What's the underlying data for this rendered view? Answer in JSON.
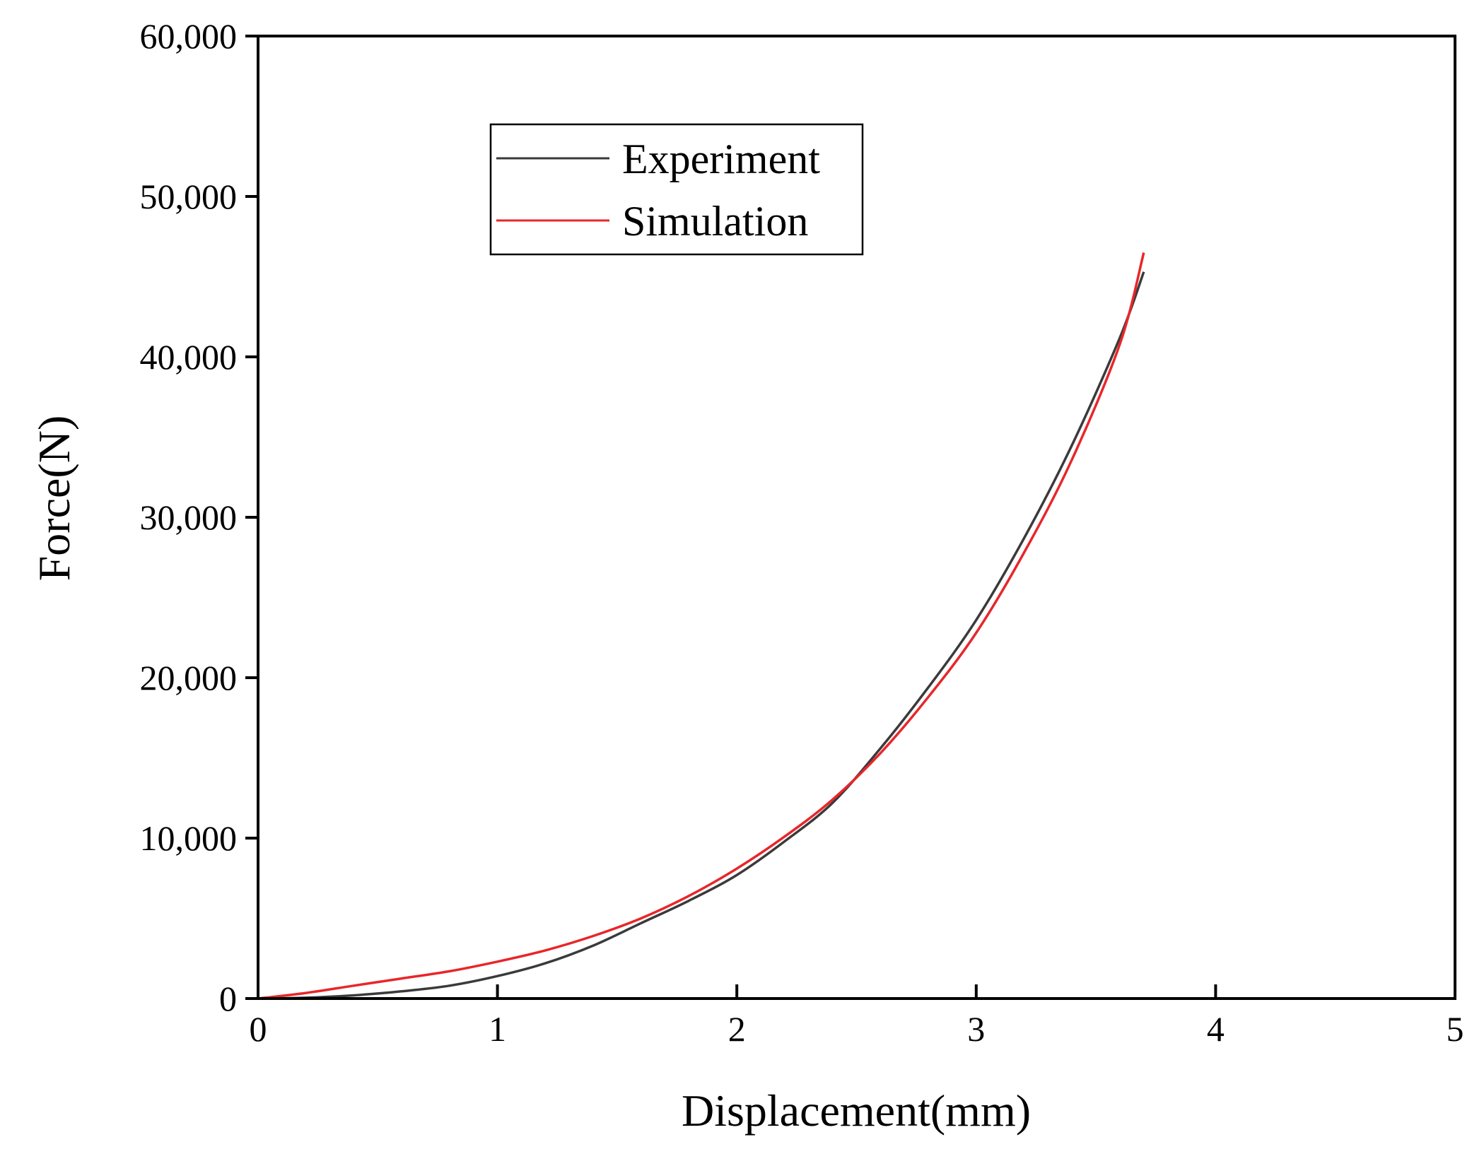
{
  "chart_data": {
    "type": "line",
    "title": "",
    "xlabel": "Displacement(mm)",
    "ylabel": "Force(N)",
    "xlim": [
      0,
      5
    ],
    "ylim": [
      0,
      60000
    ],
    "x_ticks": [
      0,
      1,
      2,
      3,
      4,
      5
    ],
    "x_tick_labels": [
      "0",
      "1",
      "2",
      "3",
      "4",
      "5"
    ],
    "y_ticks": [
      0,
      10000,
      20000,
      30000,
      40000,
      50000,
      60000
    ],
    "y_tick_labels": [
      "0",
      "10,000",
      "20,000",
      "30,000",
      "40,000",
      "50,000",
      "60,000"
    ],
    "grid": false,
    "legend_position": "top-left",
    "series": [
      {
        "name": "Experiment",
        "color": "#3a3a3a",
        "x": [
          0,
          0.2,
          0.4,
          0.6,
          0.8,
          1.0,
          1.2,
          1.4,
          1.6,
          1.8,
          2.0,
          2.2,
          2.4,
          2.6,
          2.8,
          3.0,
          3.2,
          3.4,
          3.6,
          3.7
        ],
        "y": [
          0,
          50,
          200,
          450,
          800,
          1400,
          2200,
          3300,
          4700,
          6100,
          7700,
          9800,
          12200,
          15600,
          19400,
          23600,
          28700,
          34500,
          41200,
          45300
        ]
      },
      {
        "name": "Simulation",
        "color": "#e8262a",
        "x": [
          0,
          0.2,
          0.4,
          0.6,
          0.8,
          1.0,
          1.2,
          1.4,
          1.6,
          1.8,
          2.0,
          2.2,
          2.4,
          2.6,
          2.8,
          3.0,
          3.2,
          3.4,
          3.6,
          3.7
        ],
        "y": [
          0,
          350,
          800,
          1250,
          1700,
          2300,
          3000,
          3900,
          5000,
          6400,
          8100,
          10100,
          12400,
          15300,
          18800,
          22800,
          27800,
          33600,
          40800,
          46500
        ]
      }
    ]
  }
}
